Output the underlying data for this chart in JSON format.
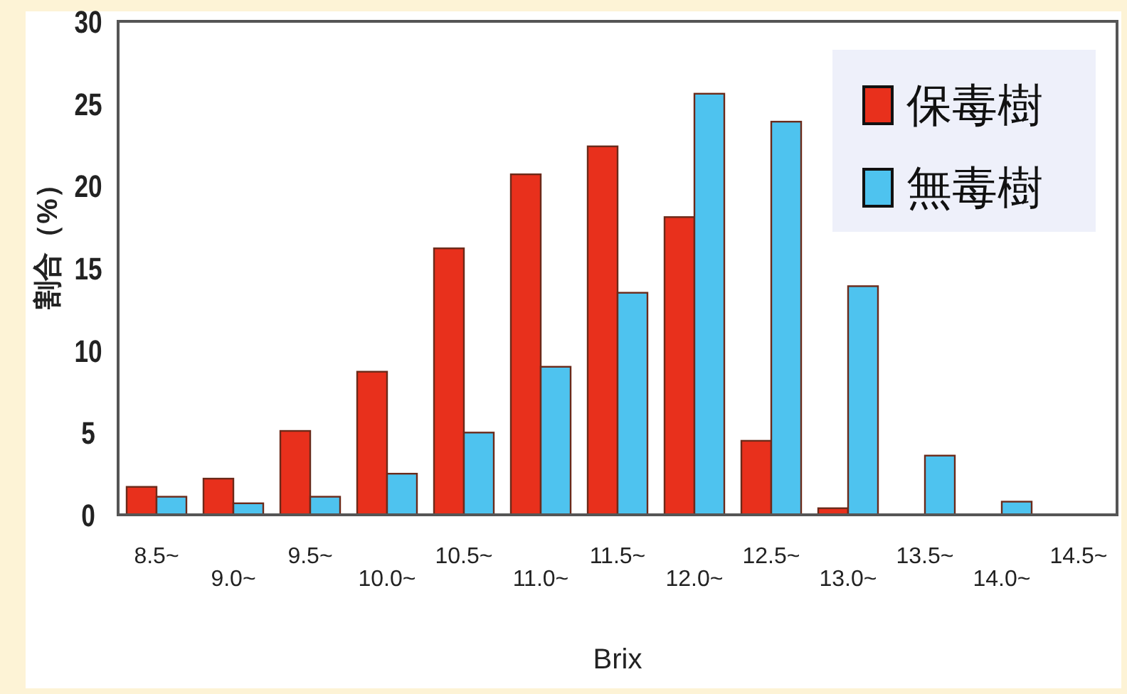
{
  "chart_data": {
    "type": "bar",
    "xlabel": "Brix",
    "ylabel": "割合（%）",
    "categories": [
      "8.5~",
      "9.0~",
      "9.5~",
      "10.0~",
      "10.5~",
      "11.0~",
      "11.5~",
      "12.0~",
      "12.5~",
      "13.0~",
      "13.5~",
      "14.0~",
      "14.5~"
    ],
    "series": [
      {
        "name": "保毒樹",
        "color": "#e8301c",
        "values": [
          1.7,
          2.2,
          5.1,
          8.7,
          16.2,
          20.7,
          22.4,
          18.1,
          4.5,
          0.4,
          0,
          0,
          null
        ]
      },
      {
        "name": "無毒樹",
        "color": "#4ec3ef",
        "values": [
          1.1,
          0.7,
          1.1,
          2.5,
          5.0,
          9.0,
          13.5,
          25.6,
          23.9,
          13.9,
          3.6,
          0.8,
          null
        ]
      }
    ],
    "ylim": [
      0,
      30
    ],
    "yticks": [
      0,
      5,
      10,
      15,
      20,
      25,
      30
    ],
    "grid": false,
    "legend": "top right"
  }
}
